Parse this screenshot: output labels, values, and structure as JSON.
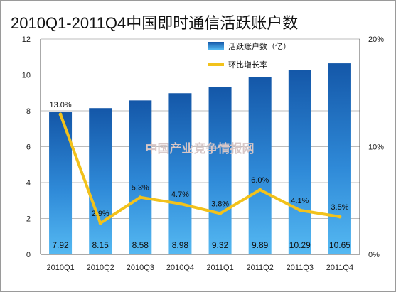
{
  "chart_data": {
    "type": "bar",
    "title": "2010Q1-2011Q4中国即时通信活跃账户数",
    "categories": [
      "2010Q1",
      "2010Q2",
      "2010Q3",
      "2010Q4",
      "2011Q1",
      "2011Q2",
      "2011Q3",
      "2011Q4"
    ],
    "series": [
      {
        "name": "活跃账户数（亿）",
        "type": "bar",
        "axis": "left",
        "values": [
          7.92,
          8.15,
          8.58,
          8.98,
          9.32,
          9.89,
          10.29,
          10.65
        ],
        "labels": [
          "7.92",
          "8.15",
          "8.58",
          "8.98",
          "9.32",
          "9.89",
          "10.29",
          "10.65"
        ],
        "color": "#1f6fbf"
      },
      {
        "name": "环比增长率",
        "type": "line",
        "axis": "right",
        "values": [
          13.0,
          2.9,
          5.3,
          4.7,
          3.8,
          6.0,
          4.1,
          3.5
        ],
        "labels": [
          "13.0%",
          "2.9%",
          "5.3%",
          "4.7%",
          "3.8%",
          "6.0%",
          "4.1%",
          "3.5%"
        ],
        "color": "#f2c21b"
      }
    ],
    "y_left": {
      "min": 0,
      "max": 12,
      "ticks": [
        "0",
        "2",
        "4",
        "6",
        "8",
        "10",
        "12"
      ]
    },
    "y_right": {
      "min": 0,
      "max": 20,
      "ticks": [
        "0%",
        "10%",
        "20%"
      ]
    },
    "grid": true,
    "legend": "top-right",
    "watermark": "中国产业竞争情报网"
  }
}
